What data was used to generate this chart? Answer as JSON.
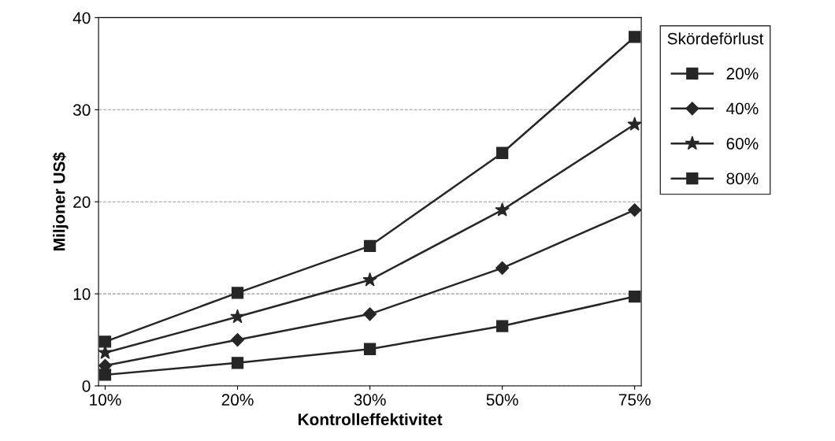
{
  "chart_data": {
    "type": "line",
    "xlabel": "Kontrolleffektivitet",
    "ylabel": "Miljoner US$",
    "categories": [
      "10%",
      "20%",
      "30%",
      "50%",
      "75%"
    ],
    "series": [
      {
        "name": "20%",
        "color": "#262626",
        "marker": "square",
        "values": [
          1.2,
          2.5,
          4.0,
          6.5,
          9.7
        ]
      },
      {
        "name": "40%",
        "color": "#262626",
        "marker": "diamond",
        "values": [
          2.2,
          5.0,
          7.8,
          12.8,
          19.1
        ]
      },
      {
        "name": "60%",
        "color": "#262626",
        "marker": "star",
        "values": [
          3.6,
          7.5,
          11.5,
          19.1,
          28.4
        ]
      },
      {
        "name": "80%",
        "color": "#262626",
        "marker": "square",
        "values": [
          4.8,
          10.1,
          15.2,
          25.3,
          37.9
        ]
      }
    ],
    "ylim": [
      0,
      40
    ],
    "yticks": [
      0,
      10,
      20,
      30,
      40
    ],
    "grid": "y",
    "legend": "right",
    "legend_title": "Skördeförlust",
    "line_style": "solid"
  }
}
